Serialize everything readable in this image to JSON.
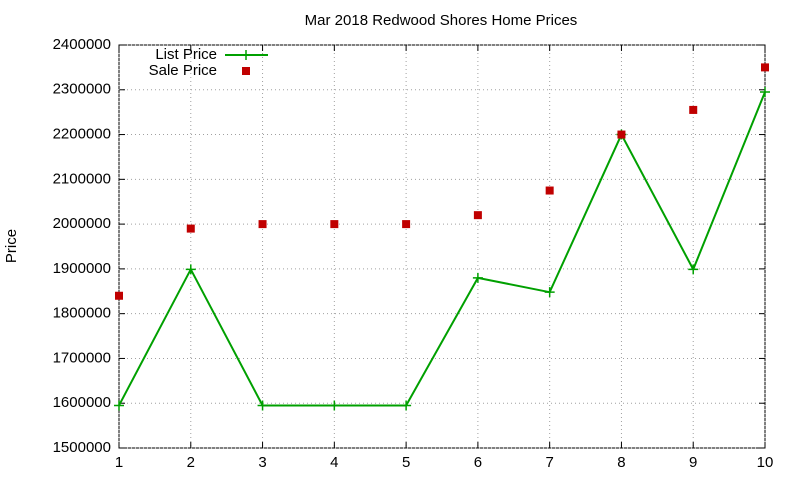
{
  "chart_data": {
    "type": "line",
    "title": "Mar 2018 Redwood Shores Home Prices",
    "y_label": "Price",
    "x": [
      1,
      2,
      3,
      4,
      5,
      6,
      7,
      8,
      9,
      10
    ],
    "series": [
      {
        "name": "List Price",
        "color": "#00a000",
        "style": "linespoints",
        "values": [
          1595000,
          1899000,
          1595000,
          1595000,
          1595000,
          1880000,
          1848000,
          2200000,
          1899000,
          2295000
        ]
      },
      {
        "name": "Sale Price",
        "color": "#c00000",
        "style": "points",
        "values": [
          1840000,
          1990000,
          2000000,
          2000000,
          2000000,
          2020000,
          2075000,
          2200000,
          2255000,
          2350000
        ]
      }
    ],
    "xlim": [
      1,
      10
    ],
    "xticks": [
      1,
      2,
      3,
      4,
      5,
      6,
      7,
      8,
      9,
      10
    ],
    "ylim": [
      1500000,
      2400000
    ],
    "yticks": [
      1500000,
      1600000,
      1700000,
      1800000,
      1900000,
      2000000,
      2100000,
      2200000,
      2300000,
      2400000
    ],
    "grid": true,
    "legend": "top-left"
  }
}
